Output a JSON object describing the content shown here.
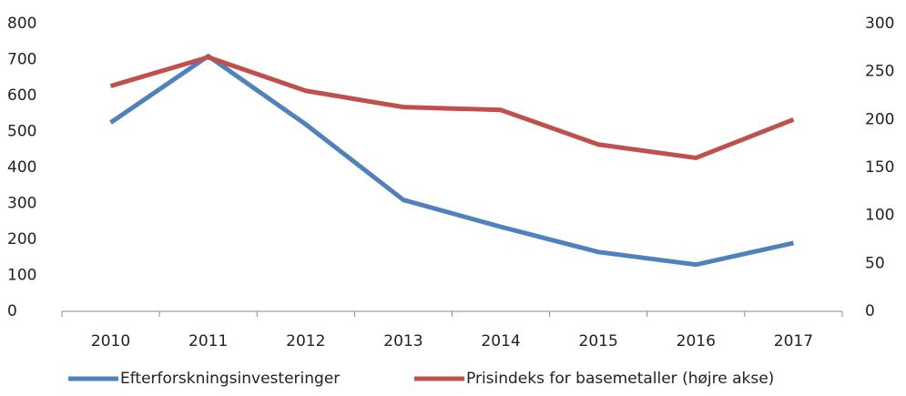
{
  "chart_data": {
    "type": "line",
    "categories": [
      "2010",
      "2011",
      "2012",
      "2013",
      "2014",
      "2015",
      "2016",
      "2017"
    ],
    "series": [
      {
        "name": "Efterforskningsinvesteringer",
        "color": "#4f81bd",
        "values": [
          525,
          710,
          520,
          310,
          235,
          165,
          130,
          190
        ]
      },
      {
        "name": "Prisindeks for basemetaller (højre akse)",
        "color": "#c0504d",
        "axis": "y2",
        "values": [
          235,
          265,
          230,
          213,
          210,
          174,
          160,
          200
        ]
      }
    ],
    "ylim": [
      0,
      800
    ],
    "yticks": [
      0,
      100,
      200,
      300,
      400,
      500,
      600,
      700,
      800
    ],
    "y2lim": [
      0,
      300
    ],
    "y2ticks": [
      0,
      50,
      100,
      150,
      200,
      250,
      300
    ],
    "grid": false,
    "legend": "bottom"
  }
}
